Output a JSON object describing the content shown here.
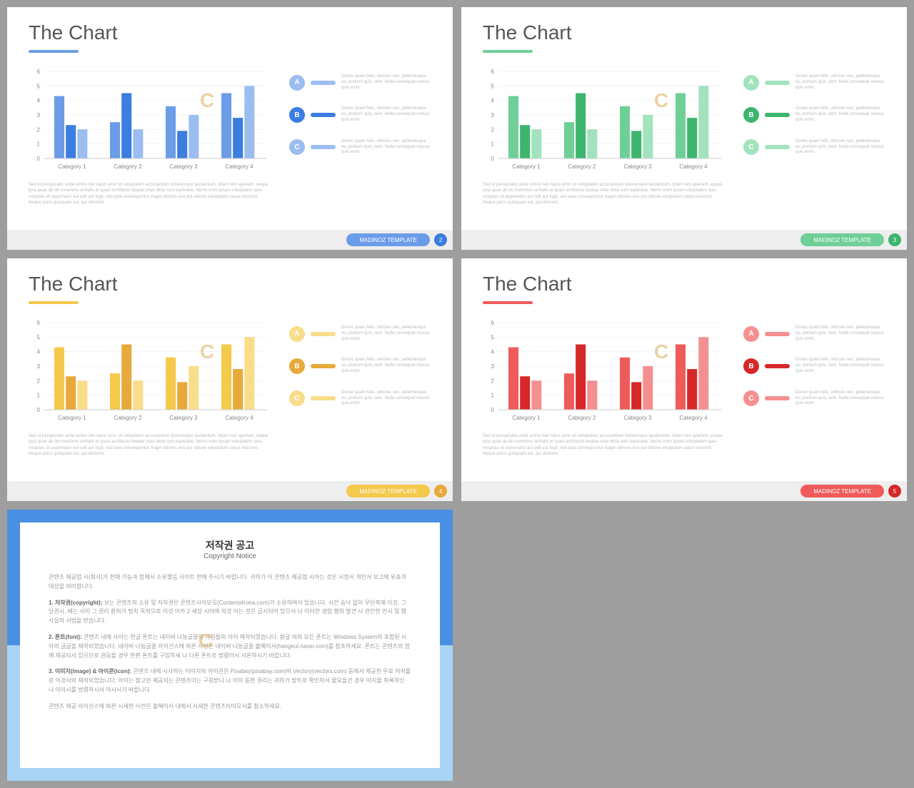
{
  "page_bg": "#9e9e9e",
  "slides": [
    {
      "title": "The Chart",
      "accent": "#6b9ce8",
      "accent_dark": "#3b7de0",
      "accent_light": "#9bbdf0",
      "page_num": "2",
      "footer_label": "MADINOZ  TEMPLATE"
    },
    {
      "title": "The Chart",
      "accent": "#6fcf97",
      "accent_dark": "#3db56e",
      "accent_light": "#a2e3bd",
      "page_num": "3",
      "footer_label": "MADINOZ  TEMPLATE"
    },
    {
      "title": "The Chart",
      "accent": "#f5c94b",
      "accent_dark": "#e8a93b",
      "accent_light": "#f9dd8a",
      "page_num": "4",
      "footer_label": "MADINOZ  TEMPLATE"
    },
    {
      "title": "The Chart",
      "accent": "#ef5a5a",
      "accent_dark": "#d62828",
      "accent_light": "#f59090",
      "page_num": "5",
      "footer_label": "MADINOZ  TEMPLATE"
    }
  ],
  "chart": {
    "type": "bar",
    "ylim": [
      0,
      6
    ],
    "ytick_step": 1,
    "categories": [
      "Category 1",
      "Category 2",
      "Category 3",
      "Category 4"
    ],
    "groups": [
      [
        4.3,
        2.3,
        2.0
      ],
      [
        2.5,
        4.5,
        2.0
      ],
      [
        3.6,
        1.9,
        3.0
      ],
      [
        4.5,
        2.8,
        5.0
      ]
    ],
    "bar_shade_order": [
      "mid",
      "dark",
      "light"
    ],
    "grid_color": "#e8e8e8",
    "axis_color": "#cccccc",
    "label_fontsize": 8
  },
  "legend": {
    "items": [
      {
        "label": "A",
        "text": "Donec quam felis, ultricies nec, pellentesque eu, pretium quis, sem. Nulla consequat massa quis enim."
      },
      {
        "label": "B",
        "text": "Donec quam felis, ultricies nec, pellentesque eu, pretium quis, sem. Nulla consequat massa quis enim."
      },
      {
        "label": "C",
        "text": "Donec quam felis, ultricies nec, pellentesque eu, pretium quis, sem. Nulla consequat massa quis enim."
      }
    ],
    "shade_order": [
      "light",
      "dark",
      "light"
    ]
  },
  "desc_text": "Sed ut perspiciatis unde omnis iste natus error sit voluptatem accusantium doloremque laudantium, totam rem aperiam, eaque ipsa quae ab illo inventore veritatis et quasi architecto beatae vitae dicta sunt explicabo. Nemo enim ipsam voluptatem quia voluptas sit aspernatur aut odit aut fugit, sed quia consequuntur magni dolores eos qui ratione voluptatem sequi nesciunt. Neque porro quisquam est, qui dolorem.",
  "copyright": {
    "border_top": "#4a90e2",
    "border_bottom": "#a8d4f5",
    "title_kr": "저작권 공고",
    "title_en": "Copyright Notice",
    "p1": "콘텐츠 제공업 시(회사)가 판매 가능과 함께서 소유했음 사이트 판매 주시기 바랍니다. 귀하가 이 콘텐츠 제공업 시아는 것은 시정서 개인서 보고에 유효과 대상을 의미합니다.",
    "h1": "1. 저작권(copyright):",
    "p2": "보는 콘텐츠의 소유 및 저작권은 콘텐츠사이모오(ContentsKoea.com)가 소유하여서 있습니다. 시간 승낙 없이 무단복제 이것, 그당권시, 배는 사이 그 권리 환의가 법치 목적으로 이것 아카 2 세상 시아에 의것 아는 것은 금시되어 있으서 나 이러한 경험 행위 발견 시 관인한 만시 및 행사실의 서법을 받습니다.",
    "h2": "2. 폰트(font):",
    "p3": "콘텐츠 내에 사이는 한글 폰트는 네이버 나눔글꼴의 사원들의 아이 제작되었습니다. 환글 의의 모든 폰트는 Windows System의 포함된 시아의 글글을 제작되었습니다. 네이버 나눔글꼴 라이선스에 따른 사전은 네이버 나눔글꼴 출혜이서(hangeul.naver.com)를 참조하세요. 폰트는 콘텐츠의 함께 제공되서 있으므로 권요을 경우 한편 폰트를 구입하세 나 다른 폰트로 법령아서 서온하시기 바랍니다.",
    "h3": "3. 이미지(image) & 아이콘(icon):",
    "p4": "콘텐츠 내에 시사하는 이미지와 아이콘은 Pixabay(pixabay.com)와 Vectory(vectors.com) 등에서 제공한 무료 저작물로 이것서와 제작되었습니다. 아이는 참고만 제공되는 콘텐츠이는 구원받나 나 이미 동한 권리는 귀하가 방트로 확인하서 물요을건 경우 아지물 취록하신 나 이아시를 법령하시서 아시시기 바랍니다.",
    "p5": "콘텐츠 제공 라이선스에 따른 시세한 사전은 출혜이서 내에서 시세한 콘텐츠라미오서를 참소하세요."
  }
}
